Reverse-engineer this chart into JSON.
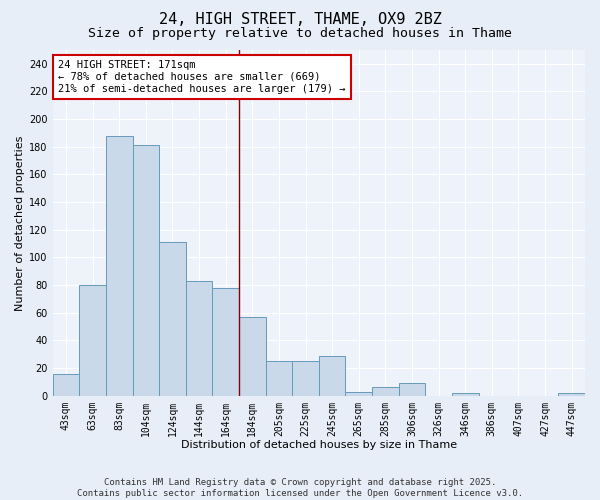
{
  "title": "24, HIGH STREET, THAME, OX9 2BZ",
  "subtitle": "Size of property relative to detached houses in Thame",
  "xlabel": "Distribution of detached houses by size in Thame",
  "ylabel": "Number of detached properties",
  "footer_line1": "Contains HM Land Registry data © Crown copyright and database right 2025.",
  "footer_line2": "Contains public sector information licensed under the Open Government Licence v3.0.",
  "categories": [
    "43sqm",
    "63sqm",
    "83sqm",
    "104sqm",
    "124sqm",
    "144sqm",
    "164sqm",
    "184sqm",
    "205sqm",
    "225sqm",
    "245sqm",
    "265sqm",
    "285sqm",
    "306sqm",
    "326sqm",
    "346sqm",
    "386sqm",
    "407sqm",
    "427sqm",
    "447sqm"
  ],
  "values": [
    16,
    80,
    188,
    181,
    111,
    83,
    78,
    57,
    25,
    25,
    29,
    3,
    6,
    9,
    0,
    2,
    0,
    0,
    0,
    2
  ],
  "bar_color": "#c9d9ea",
  "bar_edge_color": "#6699bb",
  "highlight_bar_index": 7,
  "highlight_line_color": "#880000",
  "annotation_text_line1": "24 HIGH STREET: 171sqm",
  "annotation_text_line2": "← 78% of detached houses are smaller (669)",
  "annotation_text_line3": "21% of semi-detached houses are larger (179) →",
  "annotation_box_facecolor": "#ffffff",
  "annotation_box_edgecolor": "#cc0000",
  "ylim": [
    0,
    250
  ],
  "yticks": [
    0,
    20,
    40,
    60,
    80,
    100,
    120,
    140,
    160,
    180,
    200,
    220,
    240
  ],
  "bg_color": "#e8eef8",
  "plot_bg_color": "#eef2fa",
  "grid_color": "#ffffff",
  "title_fontsize": 11,
  "subtitle_fontsize": 9.5,
  "axis_label_fontsize": 8,
  "tick_fontsize": 7,
  "annotation_fontsize": 7.5,
  "footer_fontsize": 6.5
}
